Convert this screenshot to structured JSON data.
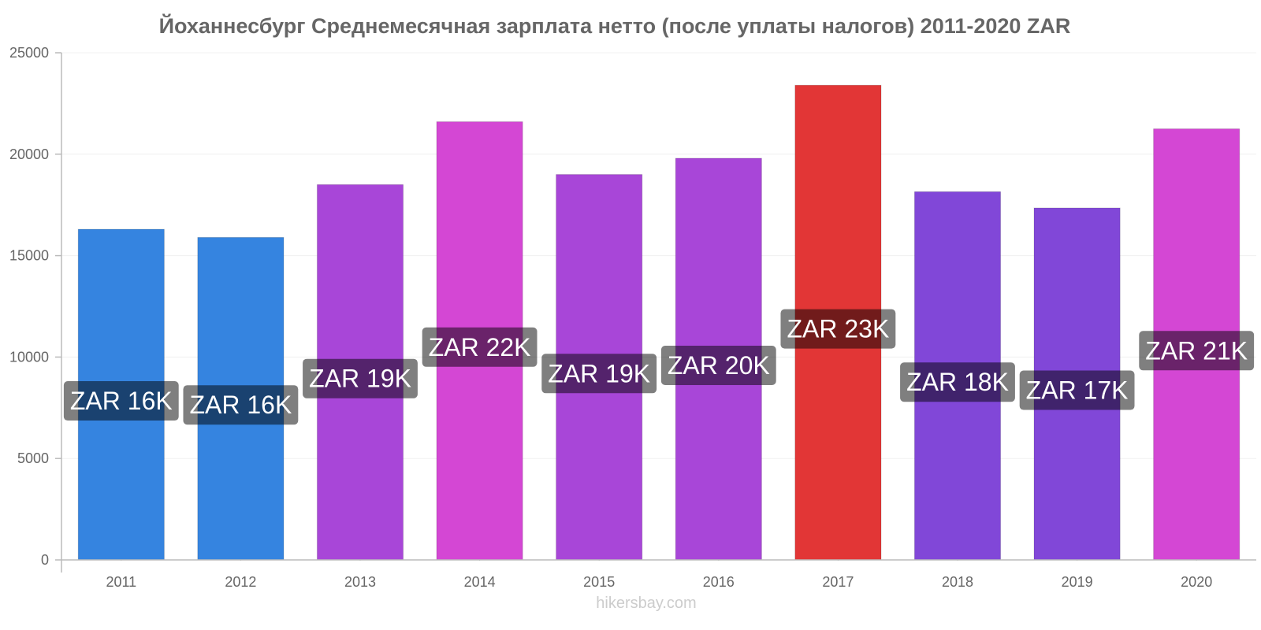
{
  "chart_data": {
    "type": "bar",
    "title": "Йоханнесбург Среднемесячная зарплата нетто (после уплаты налогов) 2011-2020 ZAR",
    "categories": [
      "2011",
      "2012",
      "2013",
      "2014",
      "2015",
      "2016",
      "2017",
      "2018",
      "2019",
      "2020"
    ],
    "values": [
      16300,
      15900,
      18500,
      21600,
      19000,
      19800,
      23400,
      18150,
      17350,
      21250
    ],
    "labels": [
      "ZAR 16K",
      "ZAR 16K",
      "ZAR 19K",
      "ZAR 22K",
      "ZAR 19K",
      "ZAR 20K",
      "ZAR 23K",
      "ZAR 18K",
      "ZAR 17K",
      "ZAR 21K"
    ],
    "colors": [
      "#3584e0",
      "#3584e0",
      "#a846d8",
      "#d447d4",
      "#a846d8",
      "#a846d8",
      "#e23636",
      "#8147d8",
      "#8147d8",
      "#d447d4"
    ],
    "yticks": [
      "0",
      "5000",
      "10000",
      "15000",
      "20000",
      "25000"
    ],
    "ylim": [
      0,
      25000
    ],
    "xlabel": "",
    "ylabel": "",
    "grid": true
  },
  "watermark": "hikersbay.com"
}
